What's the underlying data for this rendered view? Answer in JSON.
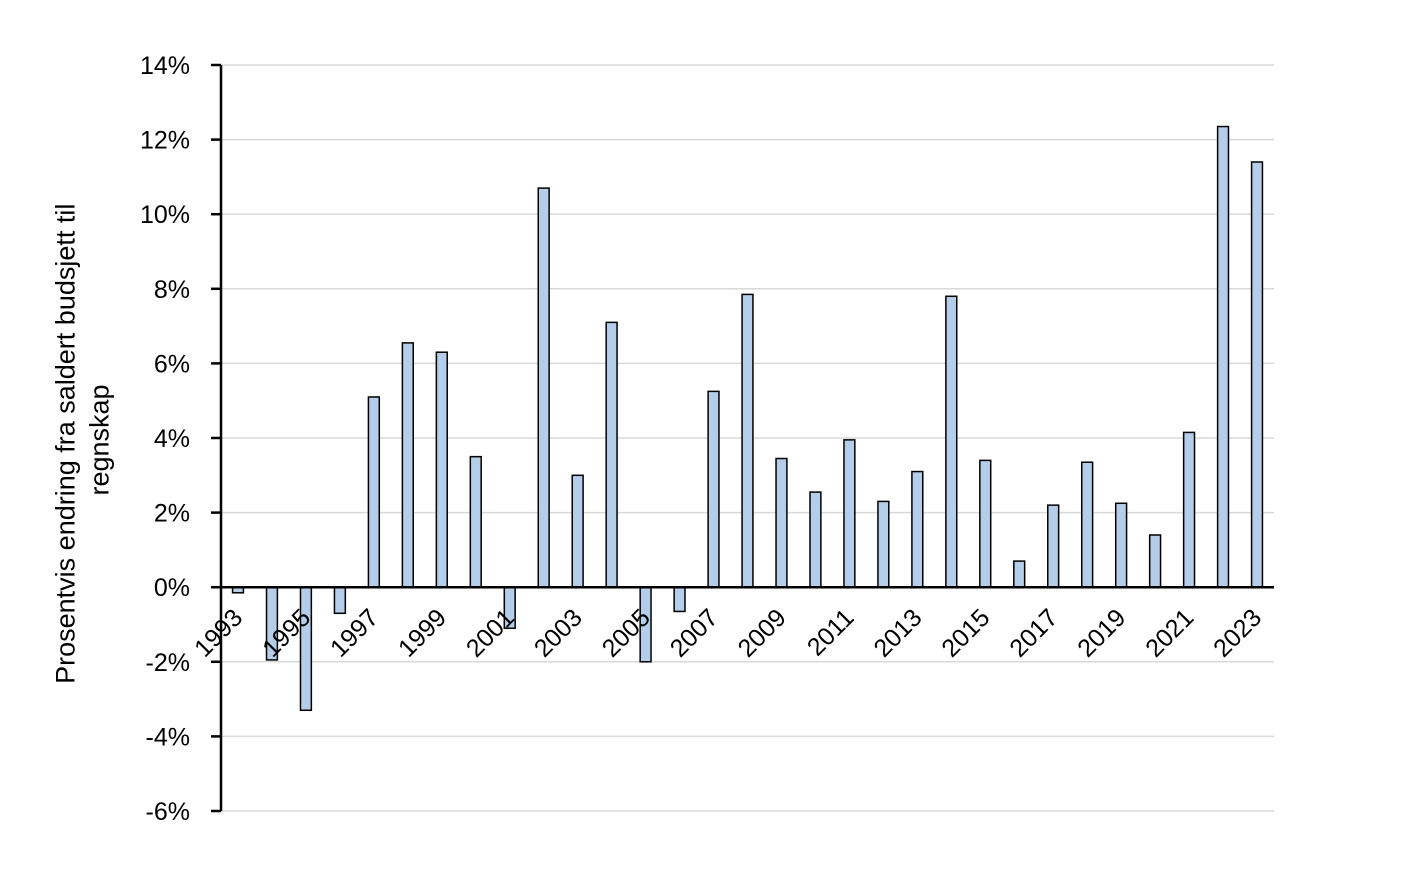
{
  "chart_data": {
    "type": "bar",
    "title": "",
    "xlabel": "",
    "ylabel_lines": [
      "Prosentvis endring fra saldert budsjett til",
      "regnskap"
    ],
    "ylim": [
      -6,
      14
    ],
    "y_ticks": [
      14,
      12,
      10,
      8,
      6,
      4,
      2,
      0,
      -2,
      -4,
      -6
    ],
    "y_tick_labels": [
      "14%",
      "12%",
      "10%",
      "8%",
      "6%",
      "4%",
      "2%",
      "0%",
      "-2%",
      "-4%",
      "-6%"
    ],
    "grid": true,
    "legend": "none",
    "bar_color": "#b4cde9",
    "bar_edge_color": "#000000",
    "grid_color": "#d9d9d9",
    "categories": [
      "1993",
      "1994",
      "1995",
      "1996",
      "1997",
      "1998",
      "1999",
      "2000",
      "2001",
      "2002",
      "2003",
      "2004",
      "2005",
      "2006",
      "2007",
      "2008",
      "2009",
      "2010",
      "2011",
      "2012",
      "2013",
      "2014",
      "2015",
      "2016",
      "2017",
      "2018",
      "2019",
      "2020",
      "2021",
      "2022",
      "2023"
    ],
    "x_tick_labels": [
      "1993",
      "",
      "1995",
      "",
      "1997",
      "",
      "1999",
      "",
      "2001",
      "",
      "2003",
      "",
      "2005",
      "",
      "2007",
      "",
      "2009",
      "",
      "2011",
      "",
      "2013",
      "",
      "2015",
      "",
      "2017",
      "",
      "2019",
      "",
      "2021",
      "",
      "2023"
    ],
    "values": [
      -0.15,
      -1.95,
      -3.3,
      -0.7,
      5.1,
      6.55,
      6.3,
      3.5,
      -1.1,
      10.7,
      3.0,
      7.1,
      -2.0,
      -0.65,
      5.25,
      7.85,
      3.45,
      2.55,
      3.95,
      2.3,
      3.1,
      7.8,
      3.4,
      0.7,
      2.2,
      3.35,
      2.25,
      1.4,
      4.15,
      12.35,
      11.4
    ]
  }
}
